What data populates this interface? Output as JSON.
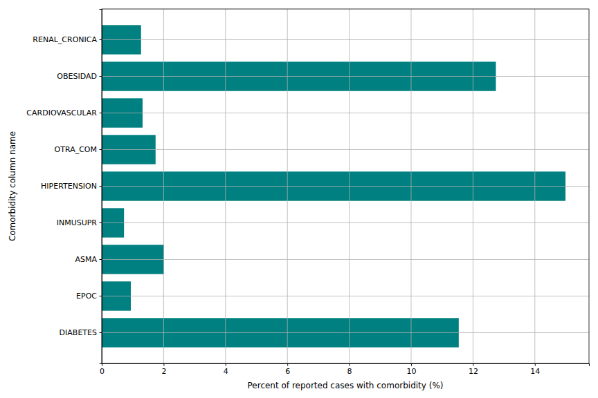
{
  "chart_data": {
    "type": "bar",
    "orientation": "horizontal",
    "x_label": "Percent of reported cases with comorbidity (%)",
    "y_label": "Comorbidity column name",
    "categories": [
      "DIABETES",
      "EPOC",
      "ASMA",
      "INMUSUPR",
      "HIPERTENSION",
      "OTRA_COM",
      "CARDIOVASCULAR",
      "OBESIDAD",
      "RENAL_CRONICA"
    ],
    "values": [
      11.54,
      0.94,
      2.01,
      0.72,
      14.99,
      1.74,
      1.32,
      12.74,
      1.27
    ],
    "color": "#008080",
    "xlim": [
      0,
      15.75
    ],
    "xticks": [
      0,
      2,
      4,
      6,
      8,
      10,
      12,
      14
    ],
    "grid": true
  }
}
